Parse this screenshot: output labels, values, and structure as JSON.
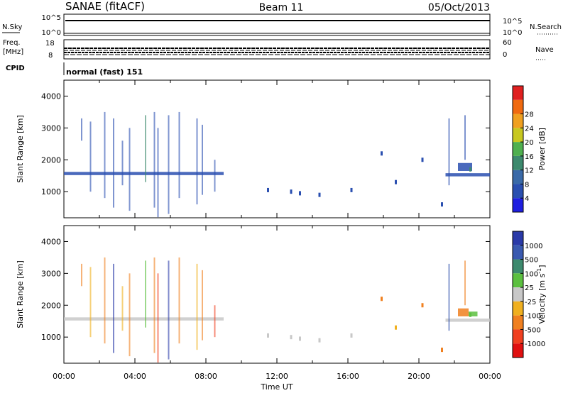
{
  "header": {
    "station": "SANAE (fitACF)",
    "beam": "Beam 11",
    "date": "05/Oct/2013"
  },
  "top_panels": {
    "nsky_label": "N.Sky",
    "nsky_ticks": [
      "10^5",
      "10^0"
    ],
    "nsearch_label": "N.Search",
    "nsearch_ticks": [
      "10^5",
      "10^0"
    ],
    "freq_label_1": "Freq.",
    "freq_label_2": "[MHz]",
    "freq_ticks": [
      "18",
      "8"
    ],
    "nave_label": "Nave",
    "nave_ticks": [
      "60",
      "0"
    ],
    "cpid_label": "CPID",
    "cpid_value": "normal (fast) 151"
  },
  "colors": {
    "power_scale": [
      "#1f1fe0",
      "#2a4fb0",
      "#3a6aa8",
      "#3d8a6e",
      "#4fb04f",
      "#c8c820",
      "#f0a020",
      "#f06a10",
      "#e02020"
    ],
    "velocity_scale": [
      "#2a3aa8",
      "#3a5ab0",
      "#3d8a6e",
      "#5cc040",
      "#c8c8c8",
      "#f0b020",
      "#f08020",
      "#f04020",
      "#e01010"
    ]
  },
  "chart_data": [
    {
      "type": "heatmap",
      "title": "",
      "ylabel": "Slant Range [km]",
      "xlabel": "Time UT",
      "ylim": [
        180,
        4500
      ],
      "y_ticks": [
        "1000",
        "2000",
        "3000",
        "4000"
      ],
      "x_ticks": [
        "00:00",
        "04:00",
        "08:00",
        "12:00",
        "16:00",
        "20:00",
        "00:00"
      ],
      "colorbar_label": "Power [dB]",
      "colorbar_ticks": [
        "4",
        "8",
        "12",
        "16",
        "20",
        "24",
        "28"
      ],
      "bands": [
        {
          "t0": 0.0,
          "t1": 9.0,
          "r0": 1520,
          "r1": 1620,
          "level": 1
        },
        {
          "t0": 21.5,
          "t1": 24.0,
          "r0": 1480,
          "r1": 1580,
          "level": 1
        },
        {
          "t0": 22.2,
          "t1": 23.0,
          "r0": 1650,
          "r1": 1900,
          "level": 1
        }
      ],
      "streaks": [
        {
          "t": 1.0,
          "r0": 2600,
          "r1": 3300,
          "level": 1
        },
        {
          "t": 1.5,
          "r0": 1000,
          "r1": 3200,
          "level": 1
        },
        {
          "t": 2.3,
          "r0": 800,
          "r1": 3500,
          "level": 1
        },
        {
          "t": 2.8,
          "r0": 500,
          "r1": 3300,
          "level": 1
        },
        {
          "t": 3.3,
          "r0": 1200,
          "r1": 2600,
          "level": 1
        },
        {
          "t": 3.7,
          "r0": 400,
          "r1": 3000,
          "level": 1
        },
        {
          "t": 4.6,
          "r0": 1300,
          "r1": 3400,
          "level": 3
        },
        {
          "t": 5.1,
          "r0": 500,
          "r1": 3500,
          "level": 1
        },
        {
          "t": 5.3,
          "r0": 200,
          "r1": 3000,
          "level": 1
        },
        {
          "t": 5.9,
          "r0": 300,
          "r1": 3400,
          "level": 1
        },
        {
          "t": 6.5,
          "r0": 800,
          "r1": 3500,
          "level": 1
        },
        {
          "t": 7.5,
          "r0": 600,
          "r1": 3300,
          "level": 1
        },
        {
          "t": 7.8,
          "r0": 900,
          "r1": 3100,
          "level": 1
        },
        {
          "t": 8.5,
          "r0": 1000,
          "r1": 2000,
          "level": 1
        },
        {
          "t": 21.7,
          "r0": 1200,
          "r1": 3300,
          "level": 1
        },
        {
          "t": 22.6,
          "r0": 2000,
          "r1": 3400,
          "level": 1
        }
      ],
      "scatter": [
        {
          "t": 11.5,
          "r": 1050,
          "level": 1
        },
        {
          "t": 12.8,
          "r": 1000,
          "level": 1
        },
        {
          "t": 13.3,
          "r": 950,
          "level": 1
        },
        {
          "t": 14.4,
          "r": 900,
          "level": 1
        },
        {
          "t": 16.2,
          "r": 1050,
          "level": 1
        },
        {
          "t": 17.9,
          "r": 2200,
          "level": 1
        },
        {
          "t": 18.7,
          "r": 1300,
          "level": 1
        },
        {
          "t": 20.2,
          "r": 2000,
          "level": 1
        },
        {
          "t": 21.3,
          "r": 600,
          "level": 1
        },
        {
          "t": 22.9,
          "r": 1700,
          "level": 3
        }
      ]
    },
    {
      "type": "heatmap",
      "title": "",
      "ylabel": "Slant Range [km]",
      "xlabel": "Time UT",
      "ylim": [
        180,
        4500
      ],
      "y_ticks": [
        "1000",
        "2000",
        "3000",
        "4000"
      ],
      "x_ticks": [
        "00:00",
        "04:00",
        "08:00",
        "12:00",
        "16:00",
        "20:00",
        "00:00"
      ],
      "colorbar_label": "Velocity [m s",
      "colorbar_label_exp": "-1",
      "colorbar_ticks": [
        "1000",
        "500",
        "100",
        "25",
        "-25",
        "-100",
        "-500",
        "-1000"
      ],
      "bands": [
        {
          "t0": 0.0,
          "t1": 9.0,
          "r0": 1520,
          "r1": 1620,
          "level": 4
        },
        {
          "t0": 21.5,
          "t1": 24.0,
          "r0": 1480,
          "r1": 1580,
          "level": 4
        },
        {
          "t0": 22.2,
          "t1": 22.8,
          "r0": 1650,
          "r1": 1900,
          "level": 6
        },
        {
          "t0": 22.8,
          "t1": 23.3,
          "r0": 1650,
          "r1": 1800,
          "level": 3
        }
      ],
      "streaks": [
        {
          "t": 1.0,
          "r0": 2600,
          "r1": 3300,
          "level": 6
        },
        {
          "t": 1.5,
          "r0": 1000,
          "r1": 3200,
          "level": 5
        },
        {
          "t": 2.3,
          "r0": 800,
          "r1": 3500,
          "level": 6
        },
        {
          "t": 2.8,
          "r0": 500,
          "r1": 3300,
          "level": 0
        },
        {
          "t": 3.3,
          "r0": 1200,
          "r1": 2600,
          "level": 5
        },
        {
          "t": 3.7,
          "r0": 400,
          "r1": 3000,
          "level": 6
        },
        {
          "t": 4.6,
          "r0": 1300,
          "r1": 3400,
          "level": 3
        },
        {
          "t": 5.1,
          "r0": 500,
          "r1": 3500,
          "level": 6
        },
        {
          "t": 5.3,
          "r0": 200,
          "r1": 3000,
          "level": 7
        },
        {
          "t": 5.9,
          "r0": 300,
          "r1": 3400,
          "level": 0
        },
        {
          "t": 6.5,
          "r0": 800,
          "r1": 3500,
          "level": 6
        },
        {
          "t": 7.5,
          "r0": 600,
          "r1": 3300,
          "level": 5
        },
        {
          "t": 7.8,
          "r0": 900,
          "r1": 3100,
          "level": 6
        },
        {
          "t": 8.5,
          "r0": 1000,
          "r1": 2000,
          "level": 7
        },
        {
          "t": 21.7,
          "r0": 1200,
          "r1": 3300,
          "level": 1
        },
        {
          "t": 22.6,
          "r0": 2000,
          "r1": 3400,
          "level": 6
        }
      ],
      "scatter": [
        {
          "t": 11.5,
          "r": 1050,
          "level": 4
        },
        {
          "t": 12.8,
          "r": 1000,
          "level": 4
        },
        {
          "t": 13.3,
          "r": 950,
          "level": 4
        },
        {
          "t": 14.4,
          "r": 900,
          "level": 4
        },
        {
          "t": 16.2,
          "r": 1050,
          "level": 4
        },
        {
          "t": 17.9,
          "r": 2200,
          "level": 6
        },
        {
          "t": 18.7,
          "r": 1300,
          "level": 5
        },
        {
          "t": 20.2,
          "r": 2000,
          "level": 6
        },
        {
          "t": 21.3,
          "r": 600,
          "level": 6
        },
        {
          "t": 22.9,
          "r": 1700,
          "level": 3
        }
      ]
    }
  ]
}
